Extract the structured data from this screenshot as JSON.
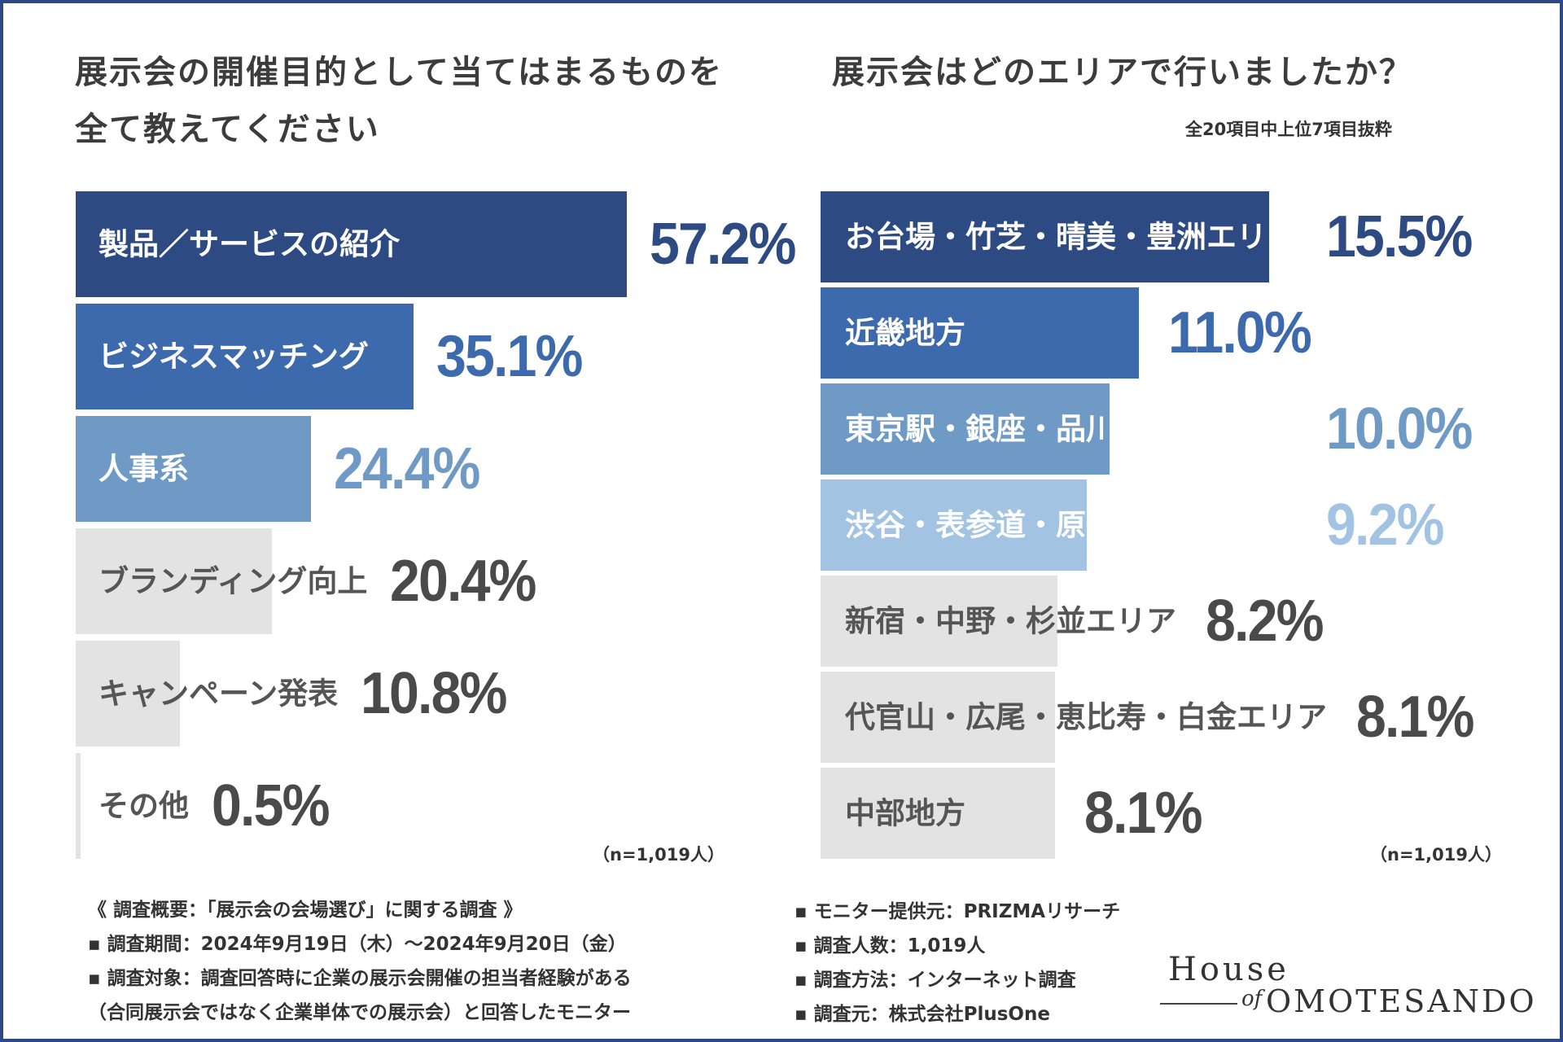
{
  "left": {
    "title_line1": "展示会の開催目的として当てはまるものを",
    "title_line2": "全て教えてください",
    "sample_size": "（n=1,019人）"
  },
  "right": {
    "title": "展示会はどのエリアで行いましたか？",
    "note": "全20項目中上位7項目抜粋",
    "sample_size": "（n=1,019人）"
  },
  "chart_data": [
    {
      "type": "bar",
      "orientation": "horizontal",
      "title": "展示会の開催目的として当てはまるものを全て教えてください",
      "categories": [
        "製品／サービスの紹介",
        "ビジネスマッチング",
        "人事系",
        "ブランディング向上",
        "キャンペーン発表",
        "その他"
      ],
      "values": [
        57.2,
        35.1,
        24.4,
        20.4,
        10.8,
        0.5
      ],
      "value_labels": [
        "57.2%",
        "35.1%",
        "24.4%",
        "20.4%",
        "10.8%",
        "0.5%"
      ],
      "unit": "%",
      "xlim": [
        0,
        57.2
      ],
      "colors": [
        "#2e4a82",
        "#3d6aad",
        "#6f9ac6",
        "#e3e3e3",
        "#e3e3e3",
        "#e3e3e3"
      ],
      "label_colors": [
        "#ffffff",
        "#ffffff",
        "#ffffff",
        "#555555",
        "#555555",
        "#555555"
      ],
      "value_colors": [
        "#2e4a82",
        "#3d6aad",
        "#6f9ac6",
        "#4a4a4a",
        "#4a4a4a",
        "#4a4a4a"
      ]
    },
    {
      "type": "bar",
      "orientation": "horizontal",
      "title": "展示会はどのエリアで行いましたか？",
      "categories": [
        "お台場・竹芝・晴美・豊洲エリア",
        "近畿地方",
        "東京駅・銀座・品川・皇居エリア",
        "渋谷・表参道・原宿・青山エリア",
        "新宿・中野・杉並エリア",
        "代官山・広尾・恵比寿・白金エリア",
        "中部地方"
      ],
      "values": [
        15.5,
        11.0,
        10.0,
        9.2,
        8.2,
        8.1,
        8.1
      ],
      "value_labels": [
        "15.5%",
        "11.0%",
        "10.0%",
        "9.2%",
        "8.2%",
        "8.1%",
        "8.1%"
      ],
      "unit": "%",
      "xlim": [
        0,
        15.5
      ],
      "colors": [
        "#2e4a82",
        "#3d6aad",
        "#6f9ac6",
        "#a3c3e3",
        "#e3e3e3",
        "#e3e3e3",
        "#e3e3e3"
      ],
      "label_colors": [
        "#ffffff",
        "#ffffff",
        "#ffffff",
        "#ffffff",
        "#555555",
        "#555555",
        "#555555"
      ],
      "value_colors": [
        "#2e4a82",
        "#3d6aad",
        "#6f9ac6",
        "#a3c3e3",
        "#4a4a4a",
        "#4a4a4a",
        "#4a4a4a"
      ]
    }
  ],
  "survey_left": [
    "《 調査概要：「展示会の会場選び」に関する調査 》",
    "▪ 調査期間：2024年9月19日（木）～2024年9月20日（金）",
    "▪ 調査対象：調査回答時に企業の展示会開催の担当者経験がある",
    "（合同展示会ではなく企業単体での展示会）と回答したモニター"
  ],
  "survey_right": [
    "▪ モニター提供元：PRIZMAリサーチ",
    "▪ 調査人数：1,019人",
    "▪ 調査方法：インターネット調査",
    "▪ 調査元：株式会社PlusOne"
  ],
  "logo": {
    "house": "House",
    "of": "of",
    "name": "OMOTESANDO"
  }
}
